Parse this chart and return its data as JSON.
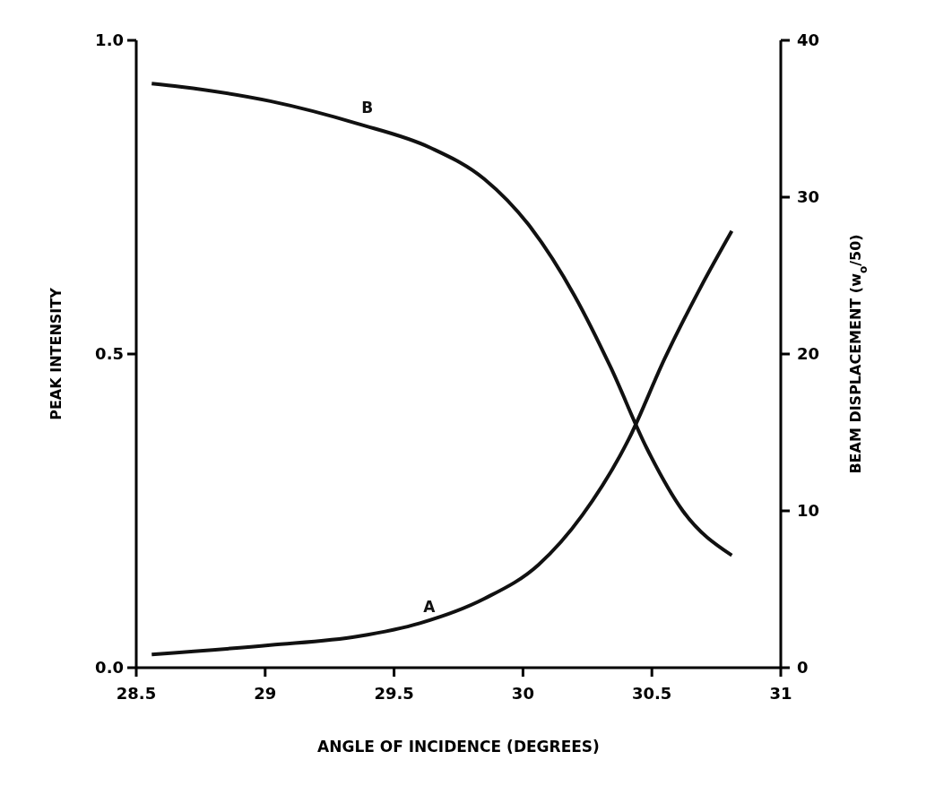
{
  "chart_data": {
    "type": "line",
    "xlabel": "ANGLE OF INCIDENCE (DEGREES)",
    "ylabel": "PEAK INTENSITY",
    "y2label": "BEAM DISPLACEMENT (w$_{o}$/50)",
    "xlim": [
      28.5,
      31
    ],
    "xticks": [
      28.5,
      29,
      29.5,
      30,
      30.5,
      31
    ],
    "ylim": [
      0,
      1
    ],
    "yticks": [
      {
        "value": 0,
        "label": "0.0"
      },
      0.5,
      {
        "value": 1,
        "label": "1.0"
      }
    ],
    "y2lim": [
      0,
      40
    ],
    "y2ticks": [
      0,
      10,
      20,
      30,
      40
    ],
    "marker": "none",
    "line_style": "solid",
    "series": [
      {
        "name": "A",
        "color": "#111111",
        "x": [
          28.56,
          29.02,
          29.36,
          29.6,
          29.85,
          30.06,
          30.23,
          30.41,
          30.55,
          30.69,
          30.81
        ],
        "values": [
          0.021,
          0.036,
          0.05,
          0.071,
          0.11,
          0.164,
          0.243,
          0.364,
          0.493,
          0.607,
          0.696
        ]
      },
      {
        "name": "B",
        "color": "#111111",
        "x": [
          28.56,
          28.67,
          29.02,
          29.36,
          29.64,
          29.85,
          30.02,
          30.2,
          30.34,
          30.48,
          30.62,
          30.81
        ],
        "values": [
          0.931,
          0.926,
          0.903,
          0.867,
          0.829,
          0.779,
          0.707,
          0.593,
          0.479,
          0.35,
          0.25,
          0.179
        ]
      }
    ]
  }
}
